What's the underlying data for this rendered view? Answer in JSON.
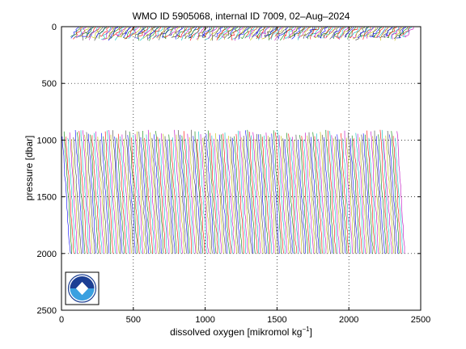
{
  "chart_data": {
    "type": "line",
    "title": "WMO ID 5905068, internal ID 7009, 02–Aug–2024",
    "xlabel": "dissolved oxygen [mikromol kg",
    "xlabel_sup": "−1",
    "xlabel_end": "]",
    "ylabel": "pressure [dbar]",
    "xlim": [
      0,
      2500
    ],
    "ylim": [
      2500,
      0
    ],
    "y_reversed": true,
    "grid": "dotted",
    "x_ticks": [
      0,
      500,
      1000,
      1500,
      2000,
      2500
    ],
    "y_ticks": [
      0,
      500,
      1000,
      1500,
      2000,
      2500
    ],
    "x_tick_labels": [
      "0",
      "500",
      "1000",
      "1500",
      "2000",
      "2500"
    ],
    "y_tick_labels": [
      "0",
      "500",
      "1000",
      "1500",
      "2000",
      "2500"
    ],
    "profiles": {
      "description_visible": "waterfall of offset oxygen profiles",
      "first_offset": 0,
      "last_offset": 2330,
      "approx_count": 180,
      "deep_segment_top_pressure_range": [
        860,
        1000
      ],
      "deep_segment_bottom_pressure": 2000,
      "shallow_segment_pressure_range": [
        0,
        120
      ]
    },
    "series_colors": [
      "#0000ff",
      "#008000",
      "#ff0000",
      "#00bfbf",
      "#bf00bf",
      "#bfbf00",
      "#404040"
    ],
    "logo": "noaa-logo"
  }
}
